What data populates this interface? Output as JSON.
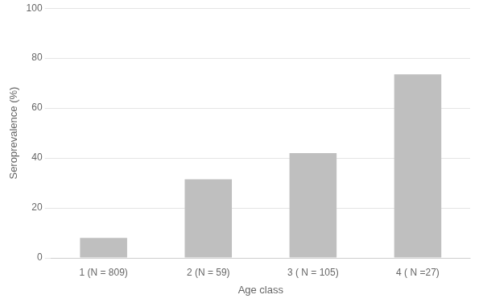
{
  "chart_data": {
    "type": "bar",
    "categories": [
      "1 (N = 809)",
      "2 (N = 59)",
      "3 ( N = 105)",
      "4 ( N =27)"
    ],
    "values": [
      8.0,
      31.5,
      42.0,
      73.5
    ],
    "color": "#bfbfbf",
    "xlabel": "Age class",
    "ylabel": "Seroprevalence (%)",
    "ylim": [
      0,
      100
    ],
    "yticks": [
      0,
      20,
      40,
      60,
      80,
      100
    ],
    "grid": true
  }
}
